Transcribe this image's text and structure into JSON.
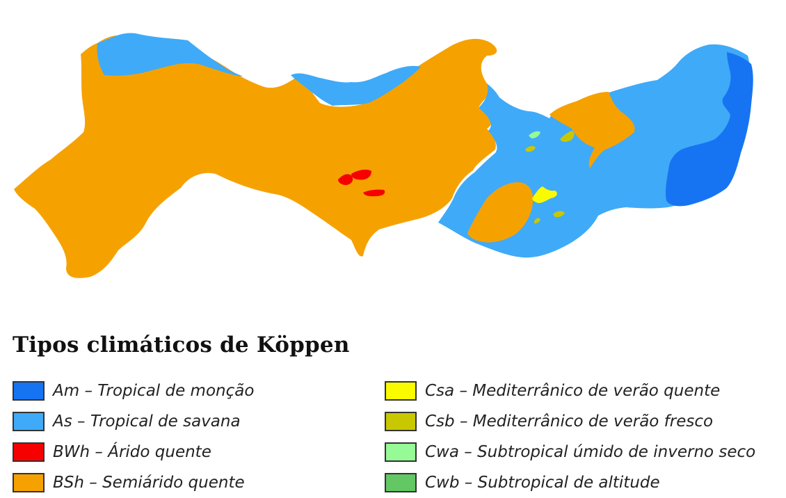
{
  "legend": {
    "title": "Tipos climáticos de Köppen",
    "items": [
      {
        "code": "Am",
        "label": "Am – Tropical de monção",
        "color": "#1674f2"
      },
      {
        "code": "As",
        "label": "As – Tropical de savana",
        "color": "#3faaf8"
      },
      {
        "code": "BWh",
        "label": "BWh – Árido quente",
        "color": "#f70000"
      },
      {
        "code": "BSh",
        "label": "BSh – Semiárido quente",
        "color": "#f5a201"
      },
      {
        "code": "Csa",
        "label": "Csa – Mediterrânico de verão quente",
        "color": "#fafa00"
      },
      {
        "code": "Csb",
        "label": "Csb – Mediterrânico de verão fresco",
        "color": "#c8c800"
      },
      {
        "code": "Cwa",
        "label": "Cwa – Subtropical úmido de inverno seco",
        "color": "#96fa96"
      },
      {
        "code": "Cwb",
        "label": "Cwb – Subtropical de altitude",
        "color": "#63c764"
      }
    ]
  }
}
